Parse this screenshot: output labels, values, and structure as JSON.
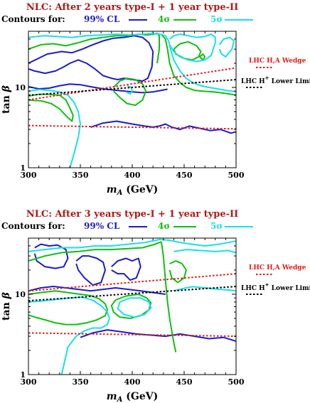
{
  "colors": {
    "title": "#b01818",
    "cl99": "#1c1cc8",
    "sigma4": "#10c010",
    "sigma5": "#18e0e8",
    "wedge": "#e81818",
    "limit": "#000000"
  },
  "chart_data": [
    {
      "type": "line",
      "title": "NLC: After 2 years type-I + 1 year type-II",
      "contours_label": "Contours for:",
      "series_labels": {
        "cl99": "99% CL",
        "s4": "4σ",
        "s5": "5σ"
      },
      "xlabel": "m_A (GeV)",
      "ylabel": "tan β",
      "xlim": [
        300,
        500
      ],
      "ylim": [
        1,
        50
      ],
      "yscale": "log",
      "xticks": [
        "300",
        "350",
        "400",
        "450",
        "500"
      ],
      "yticks": [
        "1",
        "10"
      ],
      "legend": {
        "wedge": "LHC H,A Wedge",
        "limit_pre": "LHC H",
        "limit_sup": "+",
        "limit_post": "Lower Limit"
      },
      "lines": {
        "wedge_upper": {
          "x": [
            300,
            500
          ],
          "y": [
            7.0,
            17.5
          ]
        },
        "wedge_lower": {
          "x": [
            300,
            500
          ],
          "y": [
            3.35,
            3.05
          ]
        },
        "hplus_limit": {
          "x": [
            300,
            500
          ],
          "y": [
            8.0,
            12.5
          ]
        }
      },
      "contours": {
        "cl99": [
          {
            "x": [
              300,
              318,
              332,
              342,
              352,
              362,
              372,
              382,
              392,
              402,
              410,
              416,
              420,
              419,
              415,
              410,
              400,
              392,
              386,
              380,
              372,
              364,
              356,
              348,
              340,
              334,
              326,
              316,
              306,
              300
            ],
            "y": [
              20,
              26,
              28,
              27,
              30,
              34,
              38,
              41,
              42,
              44,
              42,
              36,
              28,
              18,
              13,
              12,
              12.5,
              13,
              12.5,
              13,
              14,
              17,
              20,
              22,
              20,
              18,
              16,
              15,
              16,
              17
            ]
          },
          {
            "x": [
              300,
              310,
              320,
              330,
              340,
              350,
              360,
              372,
              385,
              400,
              410,
              420,
              428,
              434
            ],
            "y": [
              10.2,
              9.6,
              9.8,
              10.5,
              11,
              10.8,
              10.2,
              9.6,
              9.2,
              8.8,
              8.6,
              8.8,
              9.2,
              9.5
            ]
          },
          {
            "x": [
              360,
              372,
              385,
              400,
              412,
              420,
              426,
              432,
              438,
              446,
              455,
              465,
              475,
              485,
              495,
              500
            ],
            "y": [
              3.2,
              3.6,
              3.8,
              3.5,
              3.3,
              3.2,
              3.3,
              3.5,
              3.2,
              3.0,
              3.3,
              3.1,
              2.9,
              3.0,
              2.7,
              2.8
            ]
          }
        ],
        "s4": [
          {
            "x": [
              300,
              312,
              324,
              336,
              348,
              360,
              372,
              384,
              396,
              406,
              414,
              420,
              424,
              426,
              426,
              424
            ],
            "y": [
              30,
              34,
              35,
              33,
              36,
              40,
              42,
              44,
              44,
              46,
              45,
              46,
              47,
              44,
              30,
              20
            ]
          },
          {
            "x": [
              300,
              310,
              320,
              330,
              336,
              340,
              343,
              342,
              338,
              330,
              322,
              312,
              304,
              300
            ],
            "y": [
              7.8,
              8.2,
              8.2,
              8.0,
              7.0,
              5.5,
              4.5,
              3.8,
              4.2,
              5.4,
              6.3,
              6.8,
              6.9,
              7.0
            ]
          },
          {
            "x": [
              382,
              388,
              395,
              403,
              410,
              413,
              410,
              403,
              395,
              388,
              382
            ],
            "y": [
              10,
              12,
              13,
              12.5,
              11,
              9,
              7,
              6,
              6.3,
              7.5,
              9
            ]
          },
          {
            "x": [
              428,
              432,
              434,
              436,
              440,
              446,
              452,
              460,
              468,
              478,
              488,
              496,
              500
            ],
            "y": [
              46,
              40,
              30,
              20,
              14,
              11.5,
              10,
              9.2,
              9.0,
              8.8,
              8.5,
              8.2,
              8.0
            ]
          },
          {
            "x": [
              440,
              446,
              454,
              462,
              466,
              464,
              458,
              450,
              442,
              440
            ],
            "y": [
              30,
              35,
              37,
              33,
              28,
              24,
              22,
              23,
              26,
              30
            ]
          },
          {
            "x": [
              465,
              468,
              470,
              468,
              465
            ],
            "y": [
              24,
              26,
              24,
              22,
              24
            ]
          }
        ],
        "s5": [
          {
            "x": [
              300,
              315,
              328,
              342,
              356,
              370,
              384,
              398,
              410,
              420,
              427,
              432
            ],
            "y": [
              42,
              44,
              43,
              42,
              44,
              45,
              46,
              45,
              46,
              47,
              46,
              44
            ]
          },
          {
            "x": [
              300,
              310,
              320,
              330,
              338,
              344,
              348,
              350,
              348,
              344,
              340,
              336
            ],
            "y": [
              9.0,
              9.4,
              9.2,
              8.8,
              8.0,
              6.5,
              5.0,
              3.5,
              2.4,
              1.5,
              1.0,
              0.8
            ]
          },
          {
            "x": [
              395,
              399,
              400,
              398,
              395
            ],
            "y": [
              10.5,
              10,
              9,
              8.3,
              8.6
            ]
          },
          {
            "x": [
              432,
              435,
              437,
              440,
              446,
              452,
              458,
              466,
              474,
              482,
              490,
              496,
              500
            ],
            "y": [
              44,
              38,
              30,
              22,
              16,
              13,
              11.5,
              10.5,
              10,
              9.6,
              9.2,
              9.0,
              8.8
            ]
          },
          {
            "x": [
              436,
              440,
              446,
              454,
              462,
              470,
              476,
              480,
              480,
              478,
              476,
              470,
              462,
              454,
              446,
              440,
              436
            ],
            "y": [
              40,
              44,
              46,
              44,
              42,
              43,
              46,
              42,
              36,
              30,
              25,
              22,
              21,
              22,
              24,
              28,
              34
            ]
          },
          {
            "x": [
              484,
              488,
              494,
              498,
              496,
              490,
              486,
              484
            ],
            "y": [
              34,
              40,
              42,
              38,
              30,
              24,
              26,
              30
            ]
          }
        ]
      }
    },
    {
      "type": "line",
      "title": "NLC: After 3 years type-I + 1 year type-II",
      "contours_label": "Contours for:",
      "series_labels": {
        "cl99": "99% CL",
        "s4": "4σ",
        "s5": "5σ"
      },
      "xlabel": "m_A (GeV)",
      "ylabel": "tan β",
      "xlim": [
        300,
        500
      ],
      "ylim": [
        1,
        50
      ],
      "yscale": "log",
      "xticks": [
        "300",
        "350",
        "400",
        "450",
        "500"
      ],
      "yticks": [
        "1",
        "10"
      ],
      "legend": {
        "wedge": "LHC H,A Wedge",
        "limit_pre": "LHC H",
        "limit_sup": "+",
        "limit_post": "Lower Limit"
      },
      "lines": {
        "wedge_upper": {
          "x": [
            300,
            500
          ],
          "y": [
            11.0,
            18.0
          ]
        },
        "wedge_lower": {
          "x": [
            300,
            500
          ],
          "y": [
            3.3,
            3.0
          ]
        },
        "hplus_limit": {
          "x": [
            300,
            500
          ],
          "y": [
            8.3,
            12.5
          ]
        }
      },
      "contours": {
        "cl99": [
          {
            "x": [
              306,
              312,
              320,
              328,
              336,
              338,
              334,
              326,
              316,
              308,
              306
            ],
            "y": [
              38,
              42,
              40,
              41,
              36,
              28,
              22,
              21,
              22,
              26,
              32
            ]
          },
          {
            "x": [
              346,
              352,
              358,
              366,
              372,
              374,
              370,
              362,
              354,
              348,
              346
            ],
            "y": [
              26,
              30,
              30,
              28,
              25,
              20,
              14,
              13,
              16,
              20,
              24
            ]
          },
          {
            "x": [
              380,
              386,
              394,
              400,
              406,
              408,
              404,
              398,
              392,
              386,
              380
            ],
            "y": [
              22,
              26,
              28,
              26,
              28,
              22,
              16,
              15,
              18,
              18,
              20
            ]
          },
          {
            "x": [
              300,
              312,
              324,
              336,
              348,
              360,
              372,
              384,
              396,
              408,
              420,
              432
            ],
            "y": [
              11,
              12,
              12.5,
              12,
              11.5,
              11,
              11.5,
              12,
              11.5,
              11,
              10.5,
              10
            ]
          },
          {
            "x": [
              350,
              362,
              376,
              390,
              404,
              418,
              432,
              446,
              460,
              474,
              488,
              500
            ],
            "y": [
              2.9,
              3.3,
              3.6,
              3.4,
              3.2,
              3.1,
              3.0,
              3.2,
              3.0,
              2.8,
              2.9,
              2.6
            ]
          }
        ],
        "s4": [
          {
            "x": [
              300,
              316,
              332,
              348,
              364,
              380,
              396,
              410,
              422,
              428
            ],
            "y": [
              26,
              30,
              33,
              34,
              36,
              36,
              37,
              38,
              42,
              45
            ]
          },
          {
            "x": [
              300,
              312,
              326,
              338,
              350,
              360,
              368,
              374,
              376,
              374,
              366,
              356,
              346,
              336,
              326,
              316,
              306,
              300
            ],
            "y": [
              10,
              10.5,
              11,
              10.5,
              10,
              9.6,
              8.8,
              7.6,
              6.4,
              5.4,
              4.8,
              4.4,
              4.2,
              4.2,
              4.4,
              4.8,
              5.2,
              5.5
            ]
          },
          {
            "x": [
              384,
              394,
              406,
              414,
              418,
              416,
              408,
              398,
              388,
              382,
              380,
              384
            ],
            "y": [
              8.5,
              9.5,
              10,
              9,
              7.8,
              6.4,
              5.4,
              5.0,
              5.2,
              6.0,
              7.2,
              8.5
            ]
          },
          {
            "x": [
              428,
              430,
              432,
              434,
              436,
              438,
              440,
              442
            ],
            "y": [
              45,
              30,
              15,
              8,
              5,
              3.5,
              2.5,
              1.9
            ]
          },
          {
            "x": [
              436,
              442,
              448,
              452,
              450,
              444,
              438,
              436
            ],
            "y": [
              24,
              26,
              24,
              20,
              16,
              14,
              16,
              20
            ]
          }
        ],
        "s5": [
          {
            "x": [
              300,
              316,
              332,
              348,
              364,
              380,
              396,
              412,
              426,
              436,
              446,
              458,
              470,
              484,
              496,
              500
            ],
            "y": [
              34,
              36,
              38,
              38,
              40,
              40,
              42,
              44,
              48,
              47,
              44,
              42,
              40,
              42,
              45,
              46
            ]
          },
          {
            "x": [
              300,
              312,
              326,
              340,
              352,
              362,
              370,
              376,
              378,
              376,
              370,
              362,
              354,
              346,
              338,
              332
            ],
            "y": [
              8,
              8.2,
              8.6,
              9,
              9.2,
              8.4,
              7.2,
              6.0,
              5.0,
              4.2,
              3.8,
              3.8,
              3.5,
              3.0,
              2.2,
              1.0
            ]
          },
          {
            "x": [
              388,
              398,
              408,
              416,
              418,
              412,
              402,
              392,
              386,
              388
            ],
            "y": [
              8,
              9,
              9,
              8,
              6.8,
              5.6,
              5.2,
              5.6,
              6.6,
              8
            ]
          },
          {
            "x": [
              440,
              452,
              466,
              480,
              492,
              500
            ],
            "y": [
              34,
              36,
              35,
              34,
              35,
              33
            ]
          },
          {
            "x": [
              440,
              446,
              452,
              458,
              470,
              484,
              496,
              500
            ],
            "y": [
              11,
              11.5,
              12,
              12.4,
              12,
              11.5,
              11.2,
              11
            ]
          }
        ]
      }
    }
  ]
}
